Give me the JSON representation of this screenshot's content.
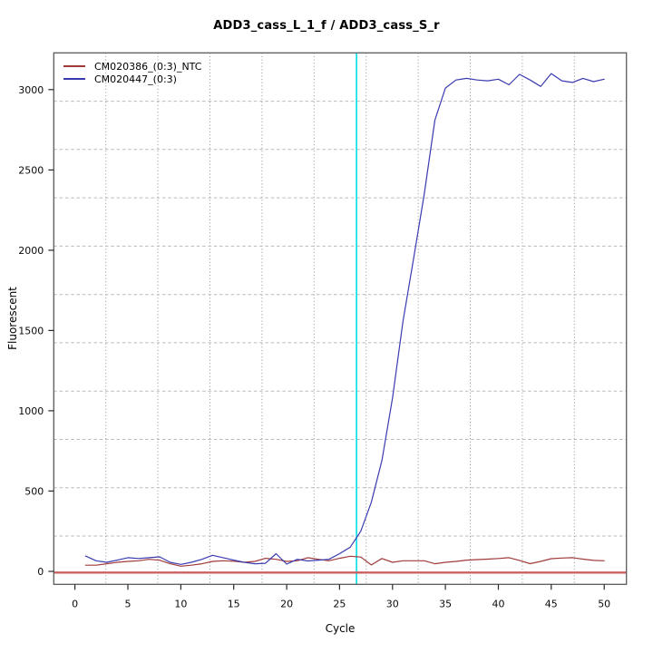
{
  "title": "ADD3_cass_L_1_f / ADD3_cass_S_r",
  "axes": {
    "x": {
      "label": "Cycle"
    },
    "y": {
      "label": "Fluorescent"
    }
  },
  "legend": [
    {
      "label": "CM020386_(0:3)_NTC",
      "color": "#a03a3a"
    },
    {
      "label": "CM020447_(0:3)",
      "color": "#3a3ab0"
    }
  ],
  "chart_data": {
    "type": "line",
    "title": "ADD3_cass_L_1_f / ADD3_cass_S_r",
    "xlabel": "Cycle",
    "ylabel": "Fluorescent",
    "xlim": [
      -2,
      52.1
    ],
    "ylim": [
      -81,
      3229
    ],
    "xticks": [
      0,
      5,
      10,
      15,
      20,
      25,
      30,
      35,
      40,
      45,
      50
    ],
    "yticks": [
      0,
      500,
      1000,
      1500,
      2000,
      2500,
      3000
    ],
    "grid": {
      "nx": 11,
      "ny": 11,
      "style": "equal-divisions",
      "x_style": "dotted",
      "y_style": "dashed"
    },
    "legend_position": "top-left",
    "ct_vline": {
      "x": 26.6,
      "color": "#00dfe6"
    },
    "baseline_hline": {
      "y": 0,
      "color": "#c96060"
    },
    "x": [
      1,
      2,
      3,
      4,
      5,
      6,
      7,
      8,
      9,
      10,
      11,
      12,
      13,
      14,
      15,
      16,
      17,
      18,
      19,
      20,
      21,
      22,
      23,
      24,
      25,
      26,
      27,
      28,
      29,
      30,
      31,
      32,
      33,
      34,
      35,
      36,
      37,
      38,
      39,
      40,
      41,
      42,
      43,
      44,
      45,
      46,
      47,
      48,
      49,
      50
    ],
    "series": [
      {
        "name": "CM020386_(0:3)_NTC",
        "color": "#a03a3a",
        "values": [
          38,
          38,
          47,
          56,
          62,
          66,
          75,
          69,
          47,
          32,
          38,
          47,
          62,
          66,
          63,
          56,
          62,
          81,
          75,
          62,
          66,
          85,
          75,
          66,
          81,
          94,
          89,
          40,
          80,
          56,
          66,
          66,
          66,
          47,
          56,
          62,
          70,
          73,
          76,
          80,
          85,
          68,
          48,
          62,
          79,
          83,
          85,
          76,
          68,
          66
        ]
      },
      {
        "name": "CM020447_(0:3)",
        "color": "#3a3ab0",
        "values": [
          95,
          66,
          56,
          70,
          85,
          80,
          85,
          90,
          56,
          43,
          56,
          75,
          100,
          85,
          70,
          56,
          47,
          50,
          110,
          45,
          75,
          65,
          70,
          75,
          110,
          150,
          250,
          430,
          690,
          1080,
          1560,
          1950,
          2350,
          2810,
          3010,
          3060,
          3070,
          3060,
          3055,
          3065,
          3030,
          3095,
          3060,
          3020,
          3100,
          3055,
          3045,
          3070,
          3050,
          3065
        ]
      }
    ]
  }
}
